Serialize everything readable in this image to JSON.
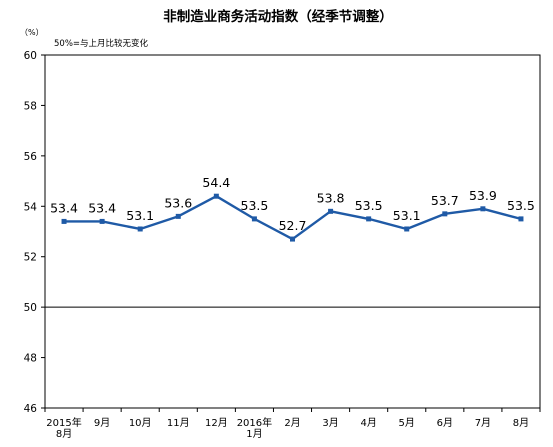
{
  "chart_data": {
    "type": "line",
    "title": "非制造业商务活动指数（经季节调整）",
    "unit": "（%）",
    "note": "50%=与上月比较无变化",
    "ylim": [
      46,
      60
    ],
    "yticks": [
      "60",
      "58",
      "56",
      "54",
      "52",
      "50",
      "48",
      "46"
    ],
    "reference_line": 50,
    "grid": false,
    "legend": "none",
    "color": "#1f5aa6",
    "categories": [
      [
        "2015年",
        "8月"
      ],
      [
        "9月"
      ],
      [
        "10月"
      ],
      [
        "11月"
      ],
      [
        "12月"
      ],
      [
        "2016年",
        "1月"
      ],
      [
        "2月"
      ],
      [
        "3月"
      ],
      [
        "4月"
      ],
      [
        "5月"
      ],
      [
        "6月"
      ],
      [
        "7月"
      ],
      [
        "8月"
      ]
    ],
    "values": [
      53.4,
      53.4,
      53.1,
      53.6,
      54.4,
      53.5,
      52.7,
      53.8,
      53.5,
      53.1,
      53.7,
      53.9,
      53.5
    ],
    "data_labels": [
      "53.4",
      "53.4",
      "53.1",
      "53.6",
      "54.4",
      "53.5",
      "52.7",
      "53.8",
      "53.5",
      "53.1",
      "53.7",
      "53.9",
      "53.5"
    ]
  }
}
